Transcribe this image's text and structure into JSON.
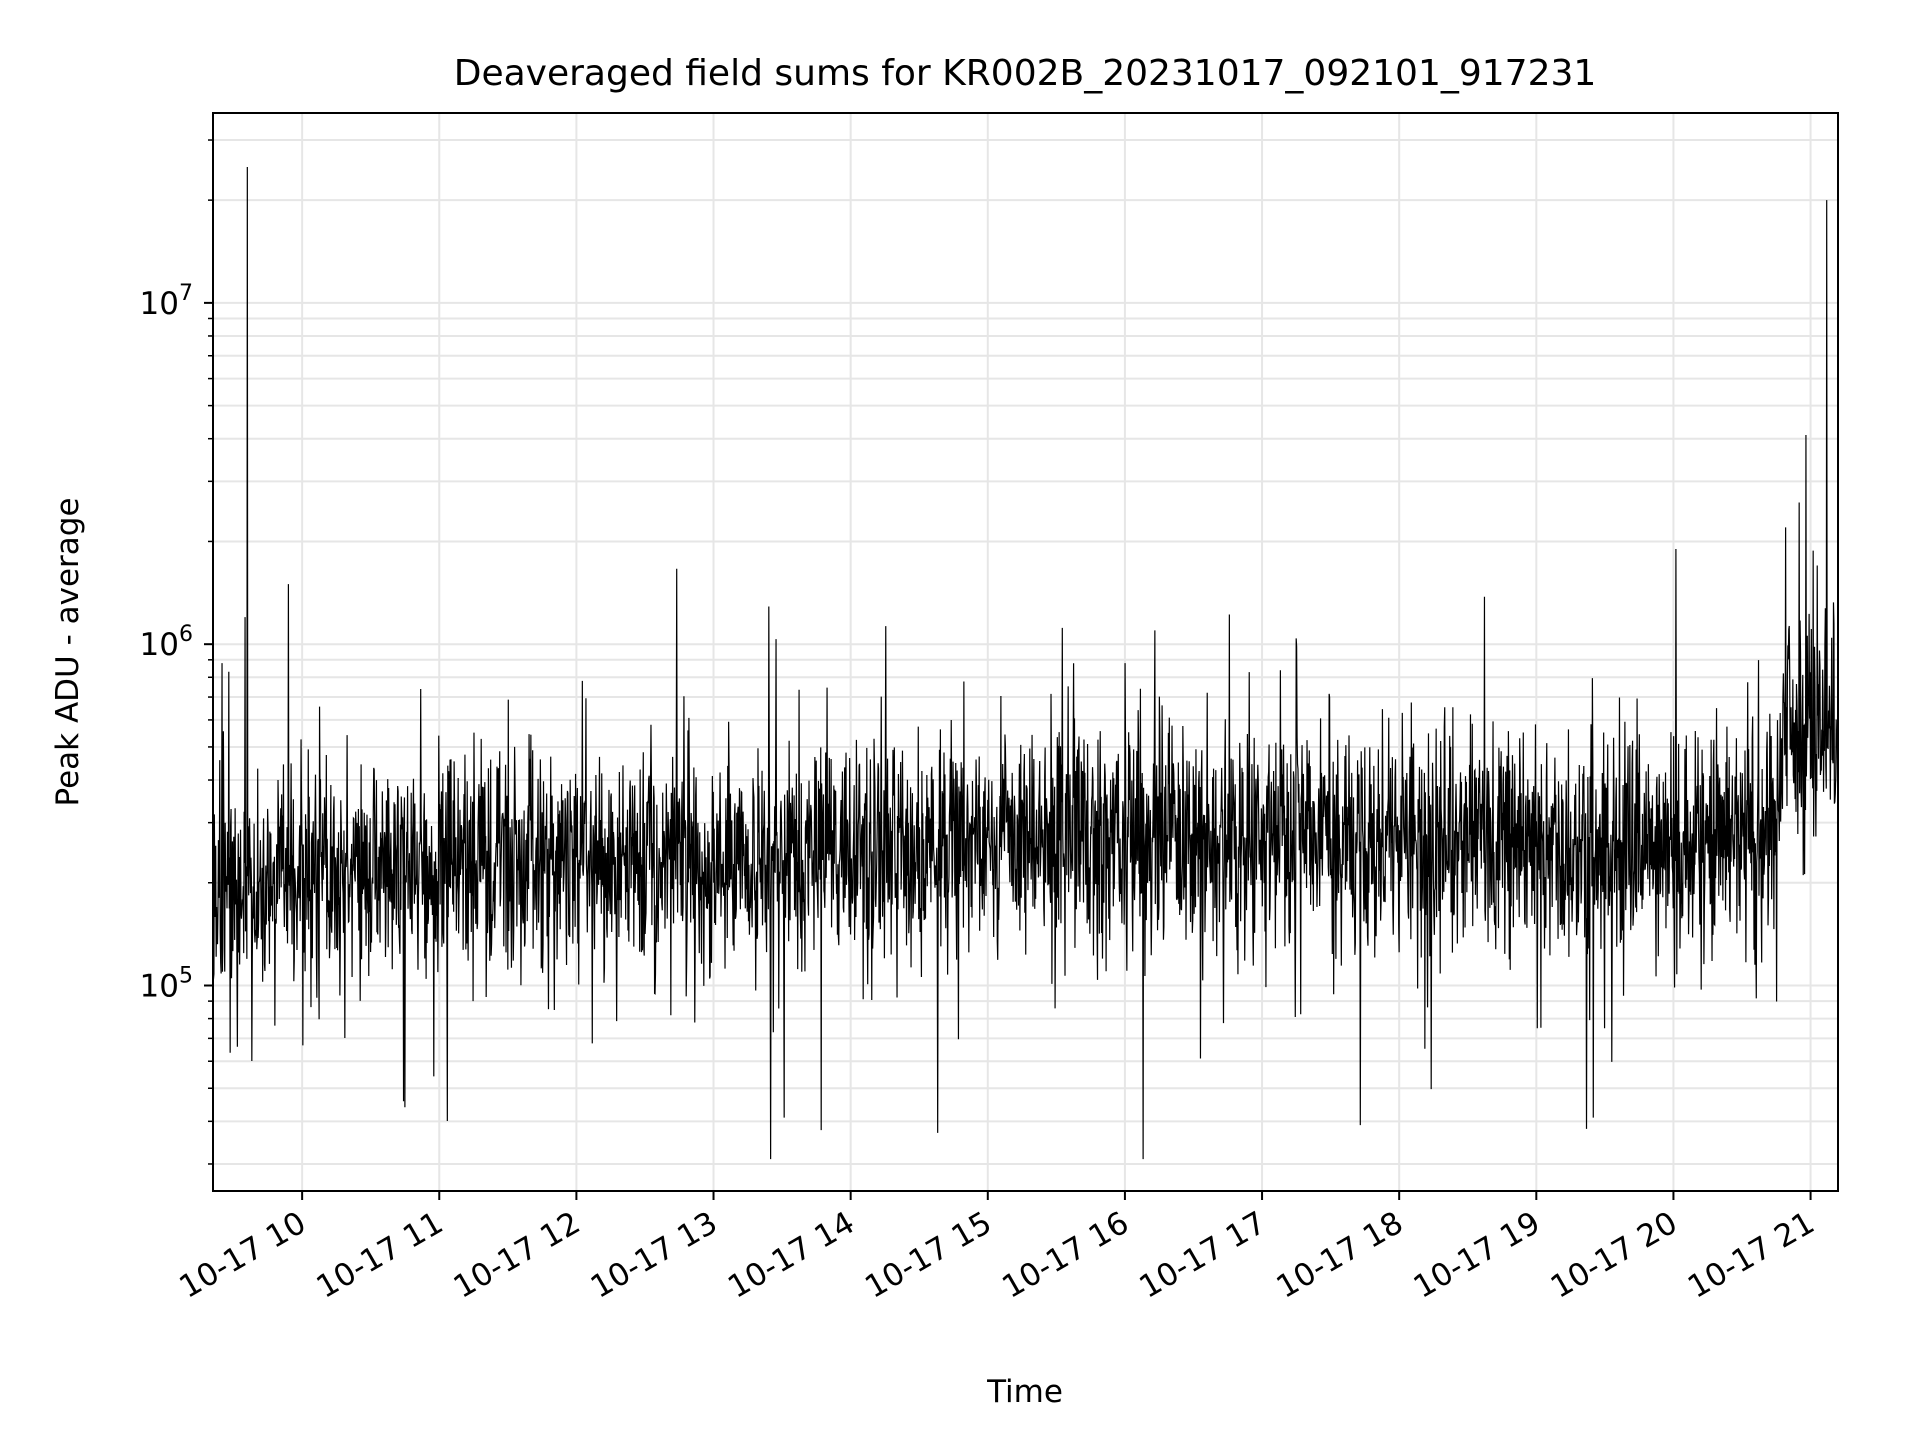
{
  "chart_data": {
    "type": "line",
    "title": "Deaveraged field sums for KR002B_20231017_092101_917231",
    "xlabel": "Time",
    "ylabel": "Peak ADU - average",
    "x_scale": "time",
    "y_scale": "log",
    "xlim": [
      "2023-10-17T09:21:00",
      "2023-10-17T21:12:00"
    ],
    "ylim": [
      25000,
      36000000
    ],
    "grid": true,
    "legend": "none",
    "line_color": "#000000",
    "x_ticks": [
      {
        "t": "2023-10-17T10:00:00",
        "label": "10-17 10"
      },
      {
        "t": "2023-10-17T11:00:00",
        "label": "10-17 11"
      },
      {
        "t": "2023-10-17T12:00:00",
        "label": "10-17 12"
      },
      {
        "t": "2023-10-17T13:00:00",
        "label": "10-17 13"
      },
      {
        "t": "2023-10-17T14:00:00",
        "label": "10-17 14"
      },
      {
        "t": "2023-10-17T15:00:00",
        "label": "10-17 15"
      },
      {
        "t": "2023-10-17T16:00:00",
        "label": "10-17 16"
      },
      {
        "t": "2023-10-17T17:00:00",
        "label": "10-17 17"
      },
      {
        "t": "2023-10-17T18:00:00",
        "label": "10-17 18"
      },
      {
        "t": "2023-10-17T19:00:00",
        "label": "10-17 19"
      },
      {
        "t": "2023-10-17T20:00:00",
        "label": "10-17 20"
      },
      {
        "t": "2023-10-17T21:00:00",
        "label": "10-17 21"
      }
    ],
    "y_ticks": [
      {
        "value": 100000,
        "base": "10",
        "exp": "5"
      },
      {
        "value": 1000000,
        "base": "10",
        "exp": "6"
      },
      {
        "value": 10000000,
        "base": "10",
        "exp": "7"
      }
    ],
    "series": [
      {
        "baseline": [
          [
            "2023-10-17T09:21:00",
            190000
          ],
          [
            "2023-10-17T09:40:00",
            180000
          ],
          [
            "2023-10-17T10:00:00",
            220000
          ],
          [
            "2023-10-17T10:30:00",
            210000
          ],
          [
            "2023-10-17T11:00:00",
            230000
          ],
          [
            "2023-10-17T12:00:00",
            240000
          ],
          [
            "2023-10-17T13:00:00",
            235000
          ],
          [
            "2023-10-17T14:00:00",
            245000
          ],
          [
            "2023-10-17T15:00:00",
            260000
          ],
          [
            "2023-10-17T16:00:00",
            260000
          ],
          [
            "2023-10-17T17:00:00",
            270000
          ],
          [
            "2023-10-17T18:00:00",
            265000
          ],
          [
            "2023-10-17T19:00:00",
            260000
          ],
          [
            "2023-10-17T20:00:00",
            255000
          ],
          [
            "2023-10-17T20:45:00",
            280000
          ],
          [
            "2023-10-17T20:50:00",
            600000
          ],
          [
            "2023-10-17T21:12:00",
            550000
          ]
        ],
        "spikes": [
          [
            "2023-10-17T09:36:00",
            25000000
          ],
          [
            "2023-10-17T09:35:00",
            1200000
          ],
          [
            "2023-10-17T09:54:00",
            1500000
          ],
          [
            "2023-10-17T09:25:00",
            880000
          ],
          [
            "2023-10-17T09:28:00",
            830000
          ],
          [
            "2023-10-17T16:00:00",
            880000
          ],
          [
            "2023-10-17T17:15:00",
            1040000
          ],
          [
            "2023-10-17T20:01:00",
            1900000
          ],
          [
            "2023-10-17T20:49:00",
            2200000
          ],
          [
            "2023-10-17T20:55:00",
            2600000
          ],
          [
            "2023-10-17T20:58:00",
            4100000
          ],
          [
            "2023-10-17T21:03:00",
            1700000
          ],
          [
            "2023-10-17T21:07:00",
            20000000
          ]
        ],
        "dips": [
          [
            "2023-10-17T10:45:00",
            44000
          ],
          [
            "2023-10-17T13:25:00",
            31000
          ],
          [
            "2023-10-17T13:31:00",
            41000
          ],
          [
            "2023-10-17T14:38:00",
            37000
          ],
          [
            "2023-10-17T16:08:00",
            31000
          ],
          [
            "2023-10-17T17:43:00",
            39000
          ],
          [
            "2023-10-17T19:22:00",
            38000
          ],
          [
            "2023-10-17T19:25:00",
            41000
          ]
        ]
      }
    ]
  }
}
